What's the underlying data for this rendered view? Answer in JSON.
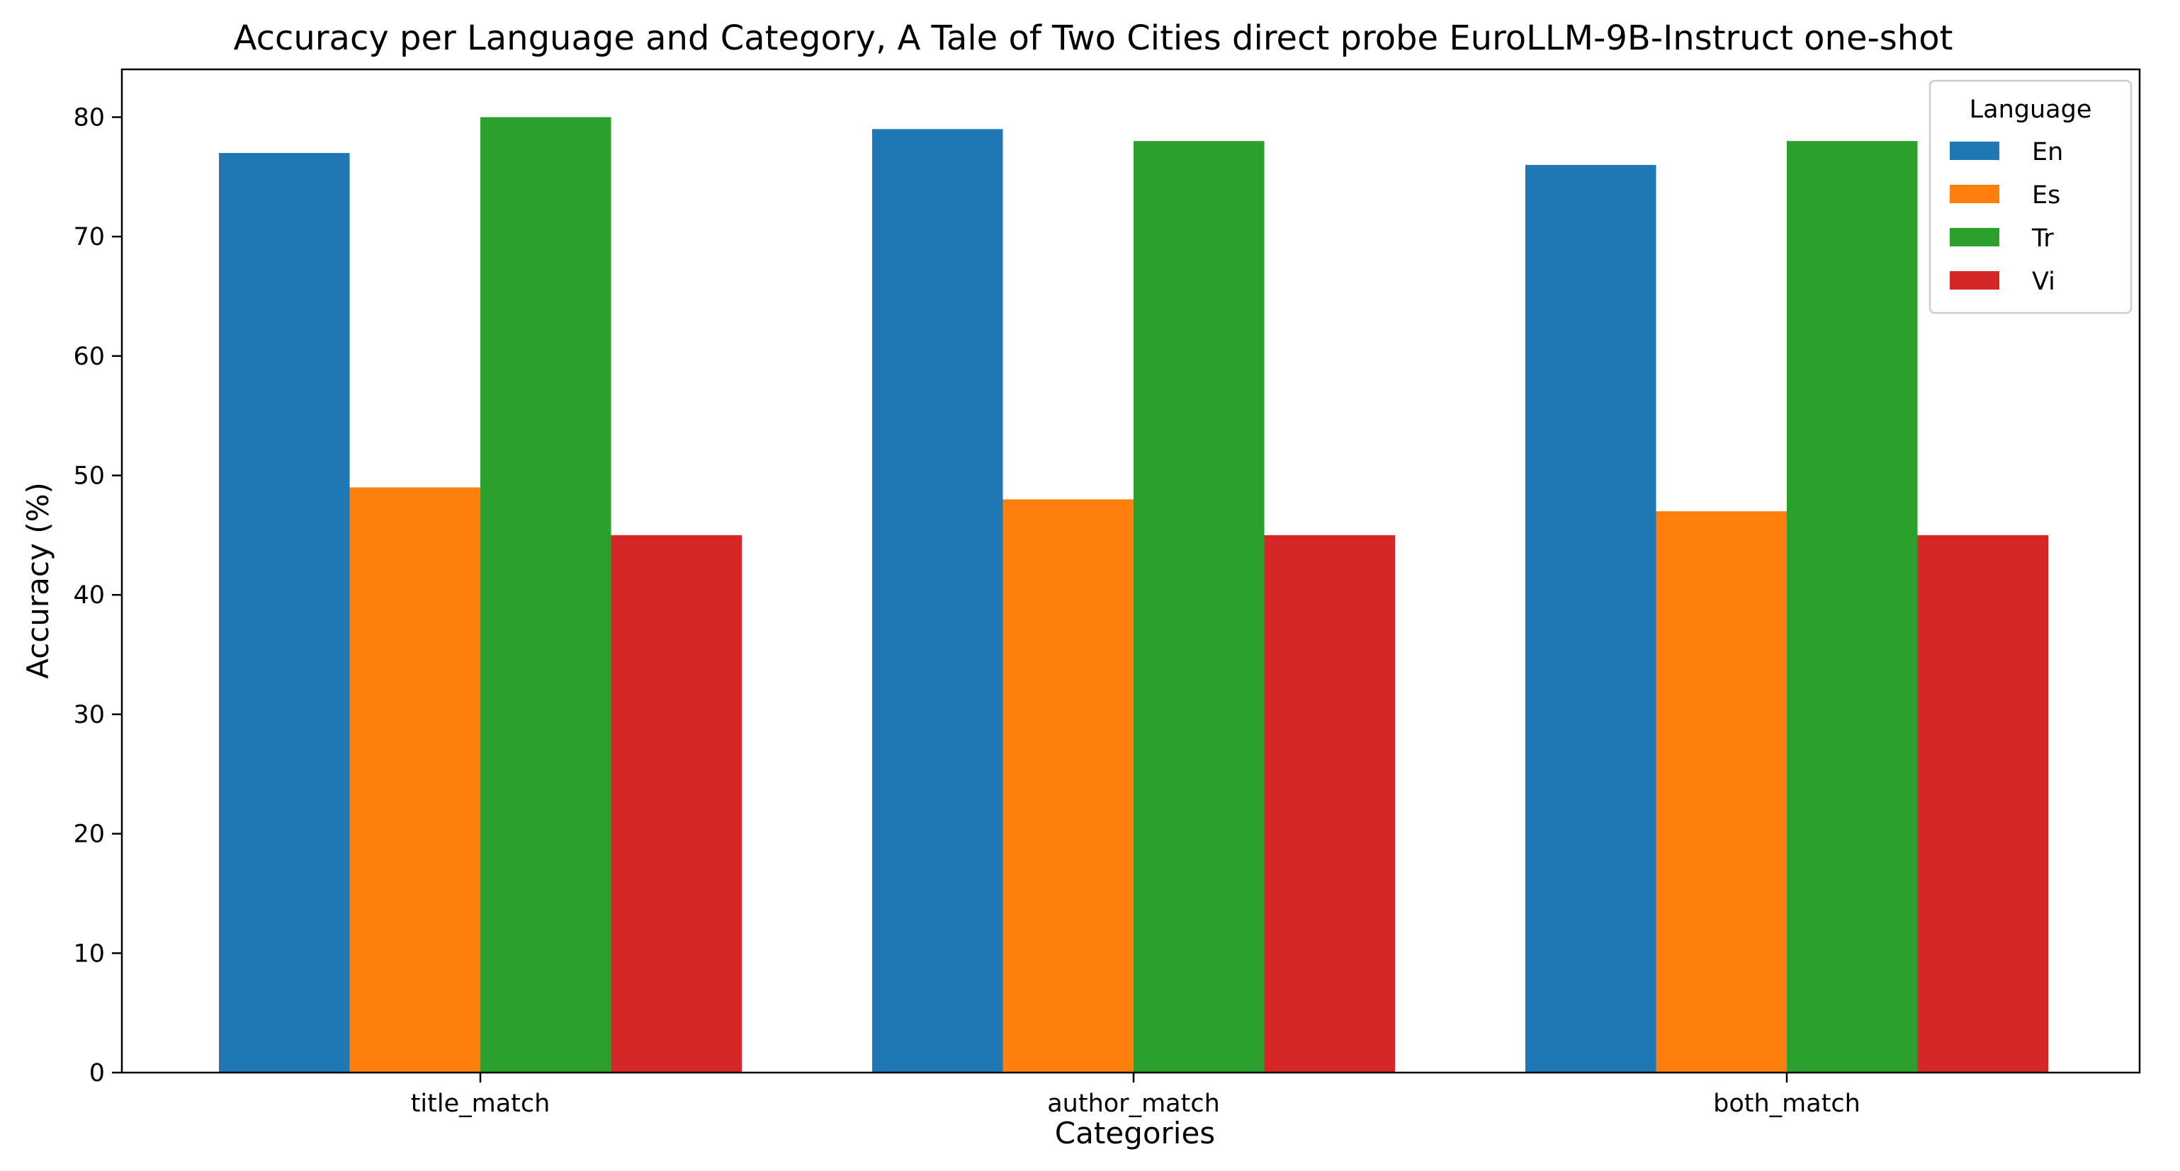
{
  "chart_data": {
    "type": "bar",
    "title": "Accuracy per Language and Category, A Tale of Two Cities direct probe EuroLLM-9B-Instruct one-shot",
    "xlabel": "Categories",
    "ylabel": "Accuracy (%)",
    "categories": [
      "title_match",
      "author_match",
      "both_match"
    ],
    "ylim": [
      0,
      84
    ],
    "yticks": [
      0,
      10,
      20,
      30,
      40,
      50,
      60,
      70,
      80
    ],
    "grid": false,
    "legend": {
      "title": "Language",
      "placement": "top-right"
    },
    "series": [
      {
        "name": "En",
        "color": "#1f77b4",
        "values": [
          77,
          79,
          76
        ]
      },
      {
        "name": "Es",
        "color": "#ff7f0e",
        "values": [
          49,
          48,
          47
        ]
      },
      {
        "name": "Tr",
        "color": "#2ca02c",
        "values": [
          80,
          78,
          78
        ]
      },
      {
        "name": "Vi",
        "color": "#d62728",
        "values": [
          45,
          45,
          45
        ]
      }
    ]
  }
}
